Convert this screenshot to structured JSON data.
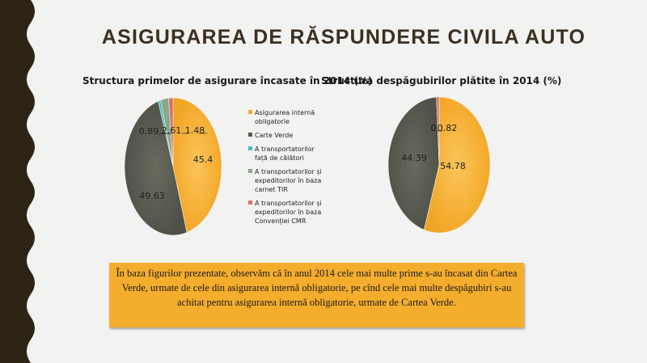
{
  "slide": {
    "title": "ASIGURAREA DE RĂSPUNDERE CIVILA AUTO",
    "note": "În baza figurilor prezentate, observăm că în anul 2014 cele mai multe prime s-au încasat din Cartea Verde, urmate de cele din asigurarea internă obligatorie, pe cînd cele mai multe despăgubiri s-au achitat pentru asigurarea internă obligatorie, urmate de Cartea Verde."
  },
  "chart_data": [
    {
      "type": "pie",
      "title": "Structura primelor de asigurare încasate în 2014 (%)",
      "categories": [
        "Asigurarea internă obligatorie",
        "Carte Verde",
        "A transportatorilor față de călători",
        "A transportatorilor și expeditorilor în baza carnet TIR",
        "A transportatorilor și expeditorilor în baza Convenției CMR"
      ],
      "values": [
        45.4,
        49.63,
        0.89,
        2.61,
        1.48
      ],
      "data_labels": [
        "45.4",
        "49.63",
        "0.89",
        "2.61",
        "1.48"
      ],
      "colors": [
        "#f5ad2d",
        "#595a4e",
        "#4bbcbc",
        "#8aa786",
        "#d8706a"
      ],
      "legend_position": "right"
    },
    {
      "type": "pie",
      "title": "Structura despăgubirilor plătite în 2014 (%)",
      "categories": [
        "Asigurarea internă obligatorie",
        "Carte Verde",
        "A transportatorilor față de călători",
        "A transportatorilor și expeditorilor în baza carnet TIR",
        "A transportatorilor și expeditorilor în baza Convenției CMR"
      ],
      "values": [
        54.78,
        44.39,
        0,
        0,
        0.82
      ],
      "data_labels": [
        "54.78",
        "44.39",
        "0",
        "0",
        "0.82"
      ],
      "colors": [
        "#f5ad2d",
        "#595a4e",
        "#4bbcbc",
        "#8aa786",
        "#d8706a"
      ]
    }
  ]
}
